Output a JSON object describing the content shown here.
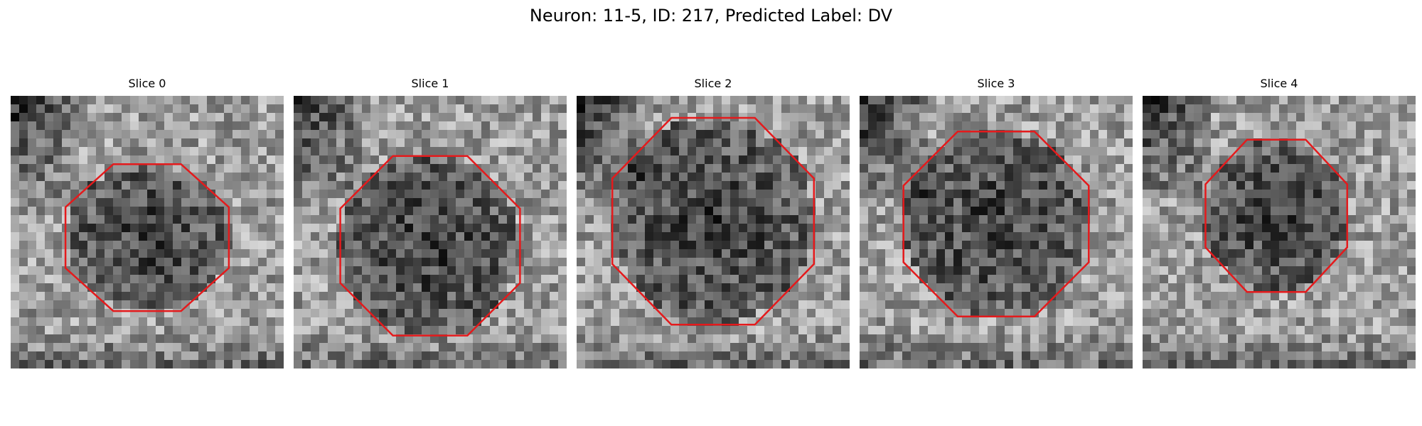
{
  "figure": {
    "title": "Neuron: 11-5, ID: 217, Predicted Label: DV",
    "contour_color": "#e41a1c",
    "panels": [
      {
        "title": "Slice 0",
        "seed": 11,
        "bg": [
          0.55,
          0.55
        ],
        "blob": [
          0.5,
          0.52,
          0.3,
          0.27
        ]
      },
      {
        "title": "Slice 1",
        "seed": 23,
        "bg": [
          0.52,
          0.45
        ],
        "blob": [
          0.5,
          0.55,
          0.33,
          0.33
        ]
      },
      {
        "title": "Slice 2",
        "seed": 37,
        "bg": [
          0.5,
          0.42
        ],
        "blob": [
          0.5,
          0.46,
          0.37,
          0.38
        ]
      },
      {
        "title": "Slice 3",
        "seed": 41,
        "bg": [
          0.5,
          0.42
        ],
        "blob": [
          0.5,
          0.47,
          0.34,
          0.34
        ]
      },
      {
        "title": "Slice 4",
        "seed": 53,
        "bg": [
          0.47,
          0.42
        ],
        "blob": [
          0.49,
          0.44,
          0.26,
          0.28
        ]
      }
    ]
  }
}
